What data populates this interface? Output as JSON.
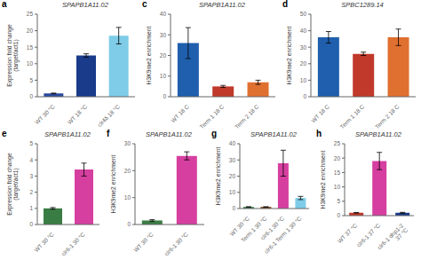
{
  "chart_data": [
    {
      "type": "bar",
      "annotations": [
        "a"
      ],
      "title": "SPAPB1A11.02",
      "ylabel": "Expression fold change\n(target/act1)",
      "categories": [
        "WT 30 °C",
        "WT 18 °C",
        "clr4δ 18 °C"
      ],
      "values": [
        1.0,
        12.5,
        18.5
      ],
      "errors": [
        0.1,
        0.5,
        2.5
      ],
      "colors": [
        "#2b4b9e",
        "#1a3a8a",
        "#7ecce8"
      ],
      "ylim": [
        0,
        25
      ],
      "yticks": [
        0,
        5,
        10,
        15,
        20,
        25
      ],
      "grid": false
    },
    {
      "type": "bar",
      "annotations": [
        "c"
      ],
      "title": "SPAPB1A11.02",
      "ylabel": "H3K9me2 enrichment",
      "categories": [
        "WT 18 C",
        "Term 1 18 C",
        "Term 2 18 C"
      ],
      "values": [
        26.0,
        5.0,
        7.0
      ],
      "errors": [
        7.5,
        0.5,
        1.0
      ],
      "colors": [
        "#1f5fad",
        "#c0392b",
        "#e07030"
      ],
      "ylim": [
        0,
        40
      ],
      "yticks": [
        0,
        10,
        20,
        30,
        40
      ],
      "grid": false
    },
    {
      "type": "bar",
      "annotations": [
        "d"
      ],
      "title": "SPBC1289.14",
      "ylabel": "H3K9me2 enrichment",
      "categories": [
        "WT 18 C",
        "Term 1 18 C",
        "Term 2 18 C"
      ],
      "values": [
        36.0,
        26.0,
        36.0
      ],
      "errors": [
        3.5,
        1.0,
        5.0
      ],
      "colors": [
        "#1f5fad",
        "#c0392b",
        "#e07030"
      ],
      "ylim": [
        0,
        50
      ],
      "yticks": [
        0,
        10,
        20,
        30,
        40,
        50
      ],
      "grid": false
    },
    {
      "type": "bar",
      "annotations": [
        "e"
      ],
      "title": "SPAPB1A11.02",
      "ylabel": "Expression fold change\n(target/act1)",
      "categories": [
        "WT 30 °C",
        "clr6-1 30 °C"
      ],
      "values": [
        1.0,
        3.4
      ],
      "errors": [
        0.05,
        0.4
      ],
      "colors": [
        "#3a7d44",
        "#d63fa0"
      ],
      "ylim": [
        0,
        5
      ],
      "yticks": [
        0,
        1,
        2,
        3,
        4,
        5
      ],
      "grid": false
    },
    {
      "type": "bar",
      "annotations": [
        "f"
      ],
      "title": "SPAPB1A11.02",
      "ylabel": "H3K9me2 enrichment",
      "categories": [
        "WT 30 °C",
        "clr6-1 30 °C"
      ],
      "values": [
        1.5,
        25.5
      ],
      "errors": [
        0.3,
        1.5
      ],
      "colors": [
        "#3a7d44",
        "#d63fa0"
      ],
      "ylim": [
        0,
        30
      ],
      "yticks": [
        0,
        10,
        20,
        30
      ],
      "grid": false
    },
    {
      "type": "bar",
      "annotations": [
        "g"
      ],
      "title": "SPAPB1A11.02",
      "ylabel": "H3K9me2 enrichment",
      "categories": [
        "WT 30 °C",
        "Term 1 30 °C",
        "clr6-1 30 °C",
        "clr6-1 Term 1 30 °C"
      ],
      "values": [
        1.0,
        1.0,
        28.0,
        6.5
      ],
      "errors": [
        0.1,
        0.1,
        8.0,
        1.0
      ],
      "colors": [
        "#3a7d44",
        "#7b3f10",
        "#d63fa0",
        "#7ecce8"
      ],
      "ylim": [
        0,
        40
      ],
      "yticks": [
        0,
        10,
        20,
        30,
        40
      ],
      "grid": false
    },
    {
      "type": "bar",
      "annotations": [
        "h"
      ],
      "title": "SPAPB1A11.02",
      "ylabel": "H3K9me2 enrichment",
      "categories": [
        "WT 37 °C",
        "clr6-1 37 °C",
        "clr6-1 dhp1-2\n37 °C"
      ],
      "values": [
        1.0,
        19.0,
        1.0
      ],
      "errors": [
        0.1,
        3.0,
        0.15
      ],
      "colors": [
        "#c0392b",
        "#d63fa0",
        "#1a3a8a"
      ],
      "ylim": [
        0,
        25
      ],
      "yticks": [
        0,
        5,
        10,
        15,
        20,
        25
      ],
      "grid": false
    }
  ]
}
